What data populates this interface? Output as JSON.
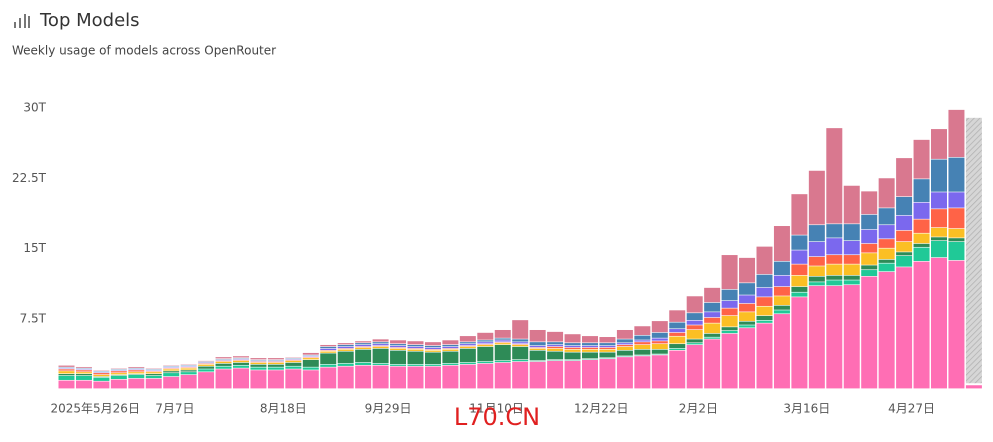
{
  "chart_data": {
    "type": "stacked_bar",
    "title": "Top Models",
    "subtitle": "Weekly usage of models across OpenRouter",
    "watermark": "L70.CN",
    "categories": [
      "2025年5月26日",
      null,
      null,
      null,
      null,
      null,
      "7月7日",
      null,
      null,
      null,
      null,
      null,
      "8月18日",
      null,
      null,
      null,
      null,
      null,
      "9月29日",
      null,
      null,
      null,
      null,
      null,
      "11月10日",
      null,
      null,
      null,
      null,
      null,
      "12月22日",
      null,
      null,
      null,
      null,
      null,
      "2月2日",
      null,
      null,
      null,
      null,
      null,
      "3月16日",
      null,
      null,
      null,
      null,
      null,
      "4月27日",
      null,
      null,
      null,
      null
    ],
    "ylim": [
      0,
      30
    ],
    "yticks": [
      {
        "value": 7.5,
        "label": "7.5T"
      },
      {
        "value": 15,
        "label": "15T"
      },
      {
        "value": 22.5,
        "label": "22.5T"
      },
      {
        "value": 30,
        "label": "30T"
      }
    ],
    "series": [
      {
        "color": "#ff6eb4",
        "values": [
          0.9,
          0.9,
          0.8,
          1.0,
          1.1,
          1.1,
          1.3,
          1.5,
          1.8,
          2.1,
          2.2,
          2.0,
          2.0,
          2.1,
          2.0,
          2.3,
          2.4,
          2.5,
          2.5,
          2.4,
          2.4,
          2.4,
          2.5,
          2.6,
          2.7,
          2.8,
          2.9,
          2.9,
          3.0,
          3.0,
          3.1,
          3.2,
          3.4,
          3.5,
          3.6,
          4.1,
          4.7,
          5.3,
          5.9,
          6.5,
          7.0,
          8.0,
          9.8,
          11.0,
          11.0,
          11.1,
          12.0,
          12.5,
          13.0,
          13.6,
          14.0,
          13.7,
          0.4
        ]
      },
      {
        "color": "#20c997",
        "values": [
          0.5,
          0.5,
          0.4,
          0.4,
          0.4,
          0.3,
          0.4,
          0.3,
          0.3,
          0.3,
          0.3,
          0.3,
          0.3,
          0.3,
          0.3,
          0.3,
          0.3,
          0.3,
          0.2,
          0.2,
          0.2,
          0.2,
          0.2,
          0.2,
          0.2,
          0.2,
          0.2,
          0.1,
          0.1,
          0.1,
          0.1,
          0.1,
          0.1,
          0.1,
          0.1,
          0.2,
          0.2,
          0.2,
          0.3,
          0.3,
          0.3,
          0.4,
          0.5,
          0.4,
          0.6,
          0.5,
          0.7,
          0.9,
          1.2,
          1.5,
          1.8,
          2.0,
          0.05
        ]
      },
      {
        "color": "#2e8b57",
        "values": [
          0.2,
          0.2,
          0.1,
          0.1,
          0.1,
          0.2,
          0.2,
          0.2,
          0.3,
          0.3,
          0.3,
          0.3,
          0.3,
          0.4,
          0.8,
          1.2,
          1.3,
          1.4,
          1.6,
          1.5,
          1.4,
          1.3,
          1.3,
          1.5,
          1.6,
          1.7,
          1.4,
          1.1,
          0.9,
          0.8,
          0.7,
          0.6,
          0.6,
          0.6,
          0.5,
          0.5,
          0.4,
          0.4,
          0.4,
          0.4,
          0.5,
          0.5,
          0.6,
          0.6,
          0.5,
          0.5,
          0.5,
          0.4,
          0.4,
          0.4,
          0.4,
          0.4,
          0
        ]
      },
      {
        "color": "#fbbf24",
        "values": [
          0.3,
          0.2,
          0.2,
          0.2,
          0.2,
          0.2,
          0.2,
          0.2,
          0.2,
          0.2,
          0.2,
          0.2,
          0.2,
          0.2,
          0.2,
          0.2,
          0.2,
          0.2,
          0.2,
          0.2,
          0.2,
          0.2,
          0.2,
          0.2,
          0.2,
          0.2,
          0.2,
          0.2,
          0.3,
          0.3,
          0.3,
          0.3,
          0.4,
          0.5,
          0.6,
          0.8,
          1.0,
          1.1,
          1.2,
          1.0,
          1.0,
          1.0,
          1.2,
          1.1,
          1.2,
          1.2,
          1.3,
          1.2,
          1.1,
          1.1,
          1.0,
          1.0,
          0.05
        ]
      },
      {
        "color": "#ff6347",
        "values": [
          0.2,
          0.2,
          0.2,
          0.2,
          0.2,
          0.1,
          0.1,
          0.1,
          0.1,
          0.1,
          0.1,
          0.1,
          0.1,
          0.1,
          0.1,
          0.1,
          0.1,
          0.1,
          0.1,
          0.1,
          0.1,
          0.1,
          0.1,
          0.1,
          0.1,
          0.1,
          0.1,
          0.1,
          0.2,
          0.2,
          0.2,
          0.2,
          0.2,
          0.3,
          0.3,
          0.4,
          0.5,
          0.6,
          0.8,
          0.9,
          1.0,
          1.0,
          1.2,
          1.0,
          1.0,
          1.0,
          1.0,
          1.0,
          1.2,
          1.5,
          2.0,
          2.2,
          0
        ]
      },
      {
        "color": "#7b68ee",
        "values": [
          0.1,
          0.1,
          0.1,
          0.1,
          0.1,
          0.1,
          0.1,
          0.1,
          0.1,
          0.1,
          0.1,
          0.1,
          0.1,
          0.1,
          0.1,
          0.2,
          0.2,
          0.2,
          0.2,
          0.2,
          0.2,
          0.2,
          0.2,
          0.2,
          0.2,
          0.2,
          0.2,
          0.2,
          0.2,
          0.2,
          0.2,
          0.2,
          0.2,
          0.2,
          0.3,
          0.4,
          0.5,
          0.6,
          0.8,
          0.9,
          1.0,
          1.2,
          1.5,
          1.6,
          1.8,
          1.5,
          1.5,
          1.5,
          1.6,
          1.8,
          1.8,
          1.7,
          0
        ]
      },
      {
        "color": "#4682b4",
        "values": [
          0.1,
          0.1,
          0.1,
          0.1,
          0.1,
          0.1,
          0.1,
          0.1,
          0.1,
          0.1,
          0.1,
          0.1,
          0.1,
          0.1,
          0.1,
          0.2,
          0.2,
          0.2,
          0.2,
          0.2,
          0.2,
          0.2,
          0.2,
          0.2,
          0.2,
          0.2,
          0.3,
          0.4,
          0.3,
          0.3,
          0.3,
          0.3,
          0.4,
          0.5,
          0.6,
          0.7,
          0.8,
          1.0,
          1.2,
          1.3,
          1.4,
          1.5,
          1.6,
          1.8,
          1.5,
          1.8,
          1.6,
          1.8,
          2.0,
          2.5,
          3.5,
          3.7,
          0
        ]
      },
      {
        "color": "#d9788f",
        "values": [
          0.2,
          0.15,
          0.1,
          0.1,
          0.15,
          0.1,
          0.1,
          0.1,
          0.1,
          0.2,
          0.2,
          0.2,
          0.2,
          0.1,
          0.25,
          0.2,
          0.2,
          0.2,
          0.3,
          0.4,
          0.4,
          0.4,
          0.5,
          0.65,
          0.8,
          0.9,
          2.05,
          1.3,
          1.1,
          0.95,
          0.75,
          0.65,
          1.0,
          1.0,
          1.25,
          1.3,
          1.8,
          1.6,
          3.7,
          2.7,
          3.0,
          3.8,
          4.4,
          5.8,
          10.25,
          4.1,
          2.5,
          3.2,
          4.15,
          4.2,
          3.25,
          5.1,
          0.05
        ]
      },
      {
        "color": "#cccccc",
        "hatch": true,
        "values": [
          null,
          null,
          null,
          null,
          null,
          null,
          null,
          null,
          null,
          null,
          null,
          null,
          null,
          null,
          null,
          null,
          null,
          null,
          null,
          null,
          null,
          null,
          null,
          null,
          null,
          null,
          null,
          null,
          null,
          null,
          null,
          null,
          null,
          null,
          null,
          null,
          null,
          null,
          null,
          null,
          null,
          null,
          null,
          null,
          null,
          null,
          null,
          null,
          null,
          null,
          null,
          null,
          28.4
        ]
      }
    ]
  }
}
